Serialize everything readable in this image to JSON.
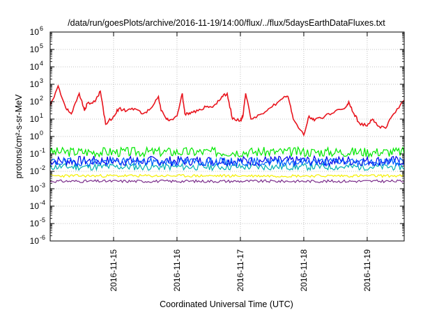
{
  "chart_data": {
    "type": "line",
    "title": "/data/run/goesPlots/archive/2016-11-19/14:00/flux/../flux/5daysEarthDataFluxes.txt",
    "xlabel": "Coordinated Universal Time (UTC)",
    "ylabel": "protons/cm²-s-sr-MeV",
    "yscale": "log",
    "ylim": [
      1e-06,
      1000000.0
    ],
    "xlim": [
      "2016-11-14 00:00",
      "2016-11-19 14:00"
    ],
    "grid": true,
    "legend": "none",
    "y_ticks": [
      {
        "value": 1e-06,
        "base": "10",
        "exp": "-6"
      },
      {
        "value": 1e-05,
        "base": "10",
        "exp": "-5"
      },
      {
        "value": 0.0001,
        "base": "10",
        "exp": "-4"
      },
      {
        "value": 0.001,
        "base": "10",
        "exp": "-3"
      },
      {
        "value": 0.01,
        "base": "10",
        "exp": "-2"
      },
      {
        "value": 0.1,
        "base": "10",
        "exp": "-1"
      },
      {
        "value": 1,
        "base": "10",
        "exp": "0"
      },
      {
        "value": 10,
        "base": "10",
        "exp": "1"
      },
      {
        "value": 100,
        "base": "10",
        "exp": "2"
      },
      {
        "value": 1000,
        "base": "10",
        "exp": "3"
      },
      {
        "value": 10000,
        "base": "10",
        "exp": "4"
      },
      {
        "value": 100000,
        "base": "10",
        "exp": "5"
      },
      {
        "value": 1000000,
        "base": "10",
        "exp": "6"
      }
    ],
    "x_ticks": [
      "2016-11-15",
      "2016-11-16",
      "2016-11-17",
      "2016-11-18",
      "2016-11-19"
    ],
    "series": [
      {
        "color": "#e8141d",
        "x": [
          "2016-11-14 00:00",
          "2016-11-14 03:00",
          "2016-11-14 06:00",
          "2016-11-14 08:00",
          "2016-11-14 11:00",
          "2016-11-14 13:00",
          "2016-11-14 14:00",
          "2016-11-14 17:00",
          "2016-11-14 19:00",
          "2016-11-14 21:00",
          "2016-11-15 00:00",
          "2016-11-15 02:00",
          "2016-11-15 05:00",
          "2016-11-15 08:00",
          "2016-11-15 11:00",
          "2016-11-15 14:00",
          "2016-11-15 17:00",
          "2016-11-15 18:00",
          "2016-11-15 20:00",
          "2016-11-15 21:00",
          "2016-11-16 00:00",
          "2016-11-16 02:00",
          "2016-11-16 03:00",
          "2016-11-16 05:00",
          "2016-11-16 08:00",
          "2016-11-16 11:00",
          "2016-11-16 14:00",
          "2016-11-16 17:00",
          "2016-11-16 19:00",
          "2016-11-16 21:00",
          "2016-11-17 00:00",
          "2016-11-17 01:00",
          "2016-11-17 02:00",
          "2016-11-17 04:00",
          "2016-11-17 08:00",
          "2016-11-17 12:00",
          "2016-11-17 16:00",
          "2016-11-17 18:00",
          "2016-11-17 20:00",
          "2016-11-18 00:00",
          "2016-11-18 02:00",
          "2016-11-18 04:00",
          "2016-11-18 08:00",
          "2016-11-18 12:00",
          "2016-11-18 16:00",
          "2016-11-18 17:00",
          "2016-11-18 19:00",
          "2016-11-18 21:00",
          "2016-11-19 00:00",
          "2016-11-19 02:00",
          "2016-11-19 04:00",
          "2016-11-19 07:00",
          "2016-11-19 10:00",
          "2016-11-19 14:00"
        ],
        "values": [
          60,
          800,
          40,
          20,
          300,
          30,
          80,
          100,
          400,
          5,
          15,
          40,
          30,
          40,
          20,
          40,
          200,
          30,
          10,
          8,
          15,
          300,
          20,
          20,
          30,
          50,
          60,
          200,
          300,
          10,
          8,
          15,
          300,
          10,
          20,
          50,
          150,
          200,
          10,
          1.2,
          15,
          8,
          15,
          30,
          50,
          100,
          20,
          6,
          4,
          10,
          4,
          3,
          20,
          120
        ]
      },
      {
        "color": "#00e800",
        "base": 0.13,
        "amp": 0.07,
        "seed": 3
      },
      {
        "color": "#00b0b0",
        "base": 0.018,
        "amp": 0.05,
        "seed": 11
      },
      {
        "color": "#0000e8",
        "base": 0.04,
        "amp": 0.07,
        "seed": 7
      },
      {
        "color": "#0060ff",
        "base": 0.035,
        "amp": 0.06,
        "seed": 19
      },
      {
        "color": "#f5f000",
        "base": 0.0055,
        "amp": 0.02,
        "seed": 23
      },
      {
        "color": "#7a2c8a",
        "base": 0.0027,
        "amp": 0.02,
        "seed": 31
      }
    ]
  }
}
